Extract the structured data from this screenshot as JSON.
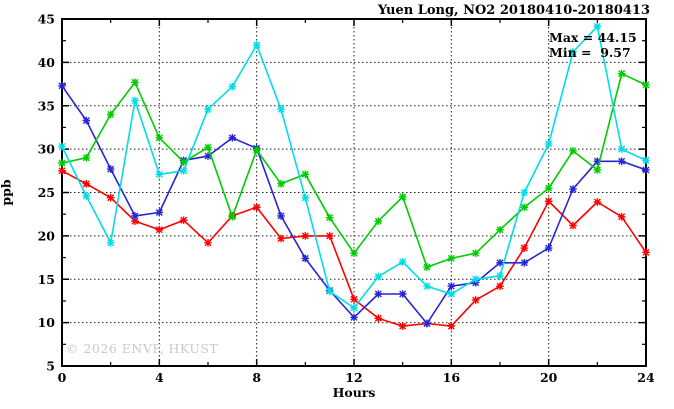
{
  "title": "Yuen Long, NO2 20180410-20180413",
  "legend": {
    "max_label": "Max = 44.15",
    "min_label": "Min =  9.57"
  },
  "watermark": "© 2026 ENVF, HKUST",
  "chart_data": {
    "type": "line",
    "title": "Yuen Long, NO2 20180410-20180413",
    "xlabel": "Hours",
    "ylabel": "ppb",
    "xlim": [
      0,
      24
    ],
    "ylim": [
      5,
      45
    ],
    "x_major_ticks": [
      0,
      4,
      8,
      12,
      16,
      20,
      24
    ],
    "x_minor_step": 2,
    "y_major_ticks": [
      5,
      10,
      15,
      20,
      25,
      30,
      35,
      40,
      45
    ],
    "y_minor_step": 2.5,
    "grid": true,
    "legend_position": "top-right-inside",
    "max_value": 44.15,
    "min_value": 9.57,
    "x": [
      0,
      1,
      2,
      3,
      4,
      5,
      6,
      7,
      8,
      9,
      10,
      11,
      12,
      13,
      14,
      15,
      16,
      17,
      18,
      19,
      20,
      21,
      22,
      23,
      24
    ],
    "series": [
      {
        "name": "red",
        "color": "#ff0000",
        "values": [
          27.5,
          26.0,
          24.4,
          21.7,
          20.7,
          21.8,
          19.2,
          22.3,
          23.3,
          19.7,
          20.0,
          20.0,
          12.7,
          10.5,
          9.6,
          9.9,
          9.6,
          12.6,
          14.2,
          18.6,
          24.0,
          21.2,
          23.9,
          22.2,
          18.1
        ]
      },
      {
        "name": "blue",
        "color": "#2626d8",
        "values": [
          37.3,
          33.3,
          27.7,
          22.3,
          22.7,
          28.7,
          29.2,
          31.3,
          30.1,
          22.3,
          17.4,
          13.7,
          10.6,
          13.3,
          13.3,
          9.9,
          14.2,
          14.6,
          16.9,
          16.9,
          18.6,
          25.4,
          28.6,
          28.6,
          27.6
        ]
      },
      {
        "name": "green",
        "color": "#00cc00",
        "values": [
          28.4,
          29.0,
          34.0,
          37.7,
          31.3,
          28.5,
          30.2,
          22.2,
          29.9,
          26.0,
          27.1,
          22.1,
          18.0,
          21.7,
          24.5,
          16.4,
          17.4,
          18.0,
          20.7,
          23.3,
          25.5,
          29.8,
          27.6,
          38.7,
          37.4
        ]
      },
      {
        "name": "cyan",
        "color": "#00dde8",
        "values": [
          30.3,
          24.6,
          19.2,
          35.6,
          27.1,
          27.5,
          34.6,
          37.2,
          42.0,
          34.6,
          24.4,
          13.6,
          11.7,
          15.3,
          17.0,
          14.2,
          13.3,
          15.0,
          15.4,
          25.0,
          30.6,
          41.2,
          44.15,
          30.0,
          28.7
        ]
      }
    ]
  }
}
